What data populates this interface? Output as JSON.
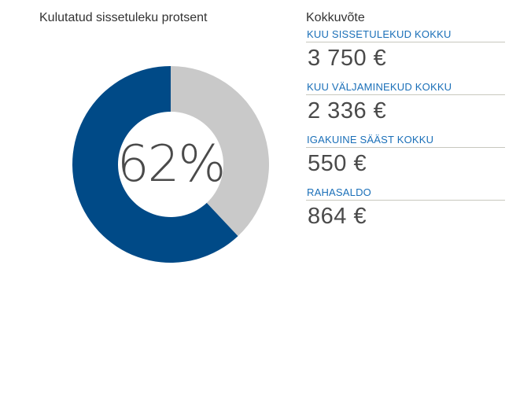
{
  "chart_data": {
    "type": "pie",
    "variant": "donut",
    "title": "Kulutatud sissetuleku protsent",
    "center_label": "62%",
    "slices": [
      {
        "value": 62,
        "color": "#004a87"
      },
      {
        "value": 38,
        "color": "#c9c9c9"
      }
    ]
  },
  "summary": {
    "title": "Kokkuvõte",
    "items": [
      {
        "label": "KUU SISSETULEKUD KOKKU",
        "value": "3 750 €"
      },
      {
        "label": "KUU VÄLJAMINEKUD KOKKU",
        "value": "2 336 €"
      },
      {
        "label": "IGAKUINE SÄÄST KOKKU",
        "value": "550 €"
      },
      {
        "label": "RAHASALDO",
        "value": "864 €"
      }
    ]
  },
  "colors": {
    "accent": "#1a6fb8",
    "spent": "#004a87",
    "remaining": "#c9c9c9"
  }
}
